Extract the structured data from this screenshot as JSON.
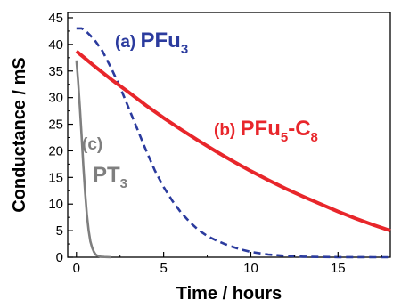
{
  "chart_data": {
    "type": "line",
    "xlabel": "Time / hours",
    "ylabel": "Conductance / mS",
    "xlim": [
      -0.5,
      18
    ],
    "ylim": [
      0,
      46
    ],
    "xticks": [
      "0",
      "5",
      "10",
      "15"
    ],
    "yticks": [
      "0",
      "5",
      "10",
      "15",
      "20",
      "25",
      "30",
      "35",
      "40",
      "45"
    ],
    "grid": false,
    "series": [
      {
        "name": "(a) PFu3",
        "label_prefix": "(a)",
        "label_main": "PFu",
        "label_sub": "3",
        "label_suffix": "",
        "color": "#2b3b9e",
        "style": "dashed",
        "x": [
          0,
          0.3,
          0.6,
          1.0,
          1.5,
          2.0,
          2.5,
          3.0,
          3.5,
          4.0,
          4.5,
          5.0,
          5.5,
          6.0,
          6.5,
          7.0,
          7.5,
          8.0,
          8.5,
          9.0,
          9.5,
          10.0,
          11.0,
          12.0,
          13.0,
          14.0,
          15.0,
          16.0,
          17.0,
          18.0
        ],
        "y": [
          43.0,
          43.0,
          42.3,
          41.0,
          38.7,
          35.5,
          32.0,
          28.0,
          24.0,
          20.0,
          16.3,
          13.2,
          10.6,
          8.4,
          6.6,
          5.1,
          4.0,
          3.2,
          2.5,
          1.9,
          1.4,
          1.0,
          0.5,
          0.25,
          0.1,
          0.05,
          0.02,
          0.01,
          0.0,
          0.0
        ]
      },
      {
        "name": "(b) PFu5-C8",
        "label_prefix": "(b)",
        "label_main": "PFu",
        "label_sub": "5",
        "label_suffix": "-C",
        "label_sub2": "8",
        "color": "#e8262b",
        "style": "solid",
        "x": [
          0,
          1,
          2,
          3,
          4,
          5,
          6,
          7,
          8,
          9,
          10,
          11,
          12,
          13,
          14,
          15,
          16,
          17,
          18
        ],
        "y": [
          38.7,
          36.0,
          33.4,
          31.0,
          28.5,
          26.2,
          24.0,
          21.9,
          19.9,
          18.0,
          16.2,
          14.5,
          12.9,
          11.4,
          10.0,
          8.6,
          7.3,
          6.1,
          5.0
        ]
      },
      {
        "name": "(c) PT3",
        "label_prefix": "(c)",
        "label_main": "PT",
        "label_sub": "3",
        "label_suffix": "",
        "color": "#7f7f7f",
        "style": "solid",
        "x": [
          0,
          0.1,
          0.2,
          0.3,
          0.4,
          0.5,
          0.6,
          0.7,
          0.8,
          0.9,
          1.0,
          1.1,
          1.2,
          1.4,
          1.6,
          2.0
        ],
        "y": [
          37.0,
          33.0,
          28.0,
          22.5,
          17.0,
          12.0,
          8.0,
          5.0,
          3.0,
          1.8,
          1.0,
          0.5,
          0.3,
          0.1,
          0.05,
          0.0
        ]
      }
    ]
  }
}
